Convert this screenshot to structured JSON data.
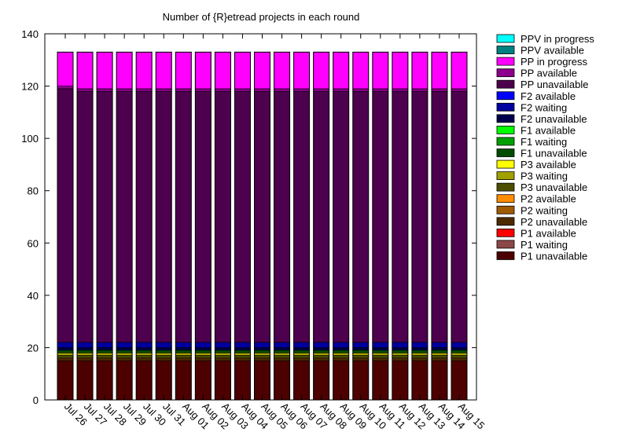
{
  "chart_data": {
    "type": "bar",
    "stacked": true,
    "title": "Number of {R}etread projects in each round",
    "xlabel": "",
    "ylabel": "",
    "ylim": [
      0,
      140
    ],
    "yticks": [
      0,
      20,
      40,
      60,
      80,
      100,
      120,
      140
    ],
    "grid": false,
    "legend_position": "right",
    "categories": [
      "Jul 26",
      "Jul 27",
      "Jul 28",
      "Jul 29",
      "Jul 30",
      "Jul 31",
      "Aug 01",
      "Aug 02",
      "Aug 03",
      "Aug 04",
      "Aug 05",
      "Aug 06",
      "Aug 07",
      "Aug 08",
      "Aug 09",
      "Aug 10",
      "Aug 11",
      "Aug 12",
      "Aug 13",
      "Aug 14",
      "Aug 15"
    ],
    "series": [
      {
        "name": "P1 unavailable",
        "color": "#4d0000",
        "values": [
          15,
          15,
          15,
          15,
          15,
          15,
          15,
          15,
          15,
          15,
          15,
          15,
          15,
          15,
          15,
          15,
          15,
          15,
          15,
          15,
          15
        ]
      },
      {
        "name": "P1 waiting",
        "color": "#8c4848",
        "values": [
          0,
          0,
          0,
          0,
          0,
          0,
          0,
          0,
          0,
          0,
          0,
          0,
          0,
          0,
          0,
          0,
          0,
          0,
          0,
          0,
          0
        ]
      },
      {
        "name": "P1 available",
        "color": "#ff0000",
        "values": [
          0,
          0,
          0,
          0,
          0,
          0,
          0,
          0,
          0,
          0,
          0,
          0,
          0,
          0,
          0,
          0,
          0,
          0,
          0,
          0,
          0
        ]
      },
      {
        "name": "P2 unavailable",
        "color": "#4d2a00",
        "values": [
          1,
          1,
          1,
          1,
          1,
          1,
          1,
          1,
          1,
          1,
          1,
          1,
          1,
          1,
          1,
          1,
          1,
          1,
          1,
          1,
          1
        ]
      },
      {
        "name": "P2 waiting",
        "color": "#a05a00",
        "values": [
          0,
          0,
          0,
          0,
          0,
          0,
          0,
          0,
          0,
          0,
          0,
          0,
          0,
          0,
          0,
          0,
          0,
          0,
          0,
          0,
          0
        ]
      },
      {
        "name": "P2 available",
        "color": "#ff8c00",
        "values": [
          0,
          0,
          0,
          0,
          0,
          0,
          0,
          0,
          0,
          0,
          0,
          0,
          0,
          0,
          0,
          0,
          0,
          0,
          0,
          0,
          0
        ]
      },
      {
        "name": "P3 unavailable",
        "color": "#4d4d00",
        "values": [
          1,
          1,
          1,
          1,
          1,
          1,
          1,
          1,
          1,
          1,
          1,
          1,
          1,
          1,
          1,
          1,
          1,
          1,
          1,
          1,
          1
        ]
      },
      {
        "name": "P3 waiting",
        "color": "#a0a000",
        "values": [
          1,
          1,
          1,
          1,
          1,
          1,
          1,
          1,
          1,
          1,
          1,
          1,
          1,
          1,
          1,
          1,
          1,
          1,
          1,
          1,
          1
        ]
      },
      {
        "name": "P3 available",
        "color": "#ffff00",
        "values": [
          0,
          0,
          0,
          0,
          0,
          0,
          0,
          0,
          0,
          0,
          0,
          0,
          0,
          0,
          0,
          0,
          0,
          0,
          0,
          0,
          0
        ]
      },
      {
        "name": "F1 unavailable",
        "color": "#004d00",
        "values": [
          1,
          1,
          1,
          1,
          1,
          1,
          1,
          1,
          1,
          1,
          1,
          1,
          1,
          1,
          1,
          1,
          1,
          1,
          1,
          1,
          1
        ]
      },
      {
        "name": "F1 waiting",
        "color": "#00a000",
        "values": [
          0,
          0,
          0,
          0,
          0,
          0,
          0,
          0,
          0,
          0,
          0,
          0,
          0,
          0,
          0,
          0,
          0,
          0,
          0,
          0,
          0
        ]
      },
      {
        "name": "F1 available",
        "color": "#00ff00",
        "values": [
          0,
          0,
          0,
          0,
          0,
          0,
          0,
          0,
          0,
          0,
          0,
          0,
          0,
          0,
          0,
          0,
          0,
          0,
          0,
          0,
          0
        ]
      },
      {
        "name": "F2 unavailable",
        "color": "#00004d",
        "values": [
          1,
          1,
          1,
          1,
          1,
          1,
          1,
          1,
          1,
          1,
          1,
          1,
          1,
          1,
          1,
          1,
          1,
          1,
          1,
          1,
          1
        ]
      },
      {
        "name": "F2 waiting",
        "color": "#0000a0",
        "values": [
          2,
          2,
          2,
          2,
          2,
          2,
          2,
          2,
          2,
          2,
          2,
          2,
          2,
          2,
          2,
          2,
          2,
          2,
          2,
          2,
          2
        ]
      },
      {
        "name": "F2 available",
        "color": "#0000ff",
        "values": [
          0,
          0,
          0,
          0,
          0,
          0,
          0,
          0,
          0,
          0,
          0,
          0,
          0,
          0,
          0,
          0,
          0,
          0,
          0,
          0,
          0
        ]
      },
      {
        "name": "PP unavailable",
        "color": "#4d004d",
        "values": [
          97,
          96,
          96,
          96,
          96,
          96,
          96,
          96,
          96,
          96,
          96,
          96,
          96,
          96,
          96,
          96,
          96,
          96,
          96,
          96,
          96
        ]
      },
      {
        "name": "PP available",
        "color": "#8c008c",
        "values": [
          1,
          1,
          1,
          1,
          1,
          1,
          1,
          1,
          1,
          1,
          1,
          1,
          1,
          1,
          1,
          1,
          1,
          1,
          1,
          1,
          1
        ]
      },
      {
        "name": "PP in progress",
        "color": "#ff00ff",
        "values": [
          13,
          14,
          14,
          14,
          14,
          14,
          14,
          14,
          14,
          14,
          14,
          14,
          14,
          14,
          14,
          14,
          14,
          14,
          14,
          14,
          14
        ]
      },
      {
        "name": "PPV available",
        "color": "#008080",
        "values": [
          0,
          0,
          0,
          0,
          0,
          0,
          0,
          0,
          0,
          0,
          0,
          0,
          0,
          0,
          0,
          0,
          0,
          0,
          0,
          0,
          0
        ]
      },
      {
        "name": "PPV in progress",
        "color": "#00ffff",
        "values": [
          0,
          0,
          0,
          0,
          0,
          0,
          0,
          0,
          0,
          0,
          0,
          0,
          0,
          0,
          0,
          0,
          0,
          0,
          0,
          0,
          0
        ]
      }
    ]
  }
}
